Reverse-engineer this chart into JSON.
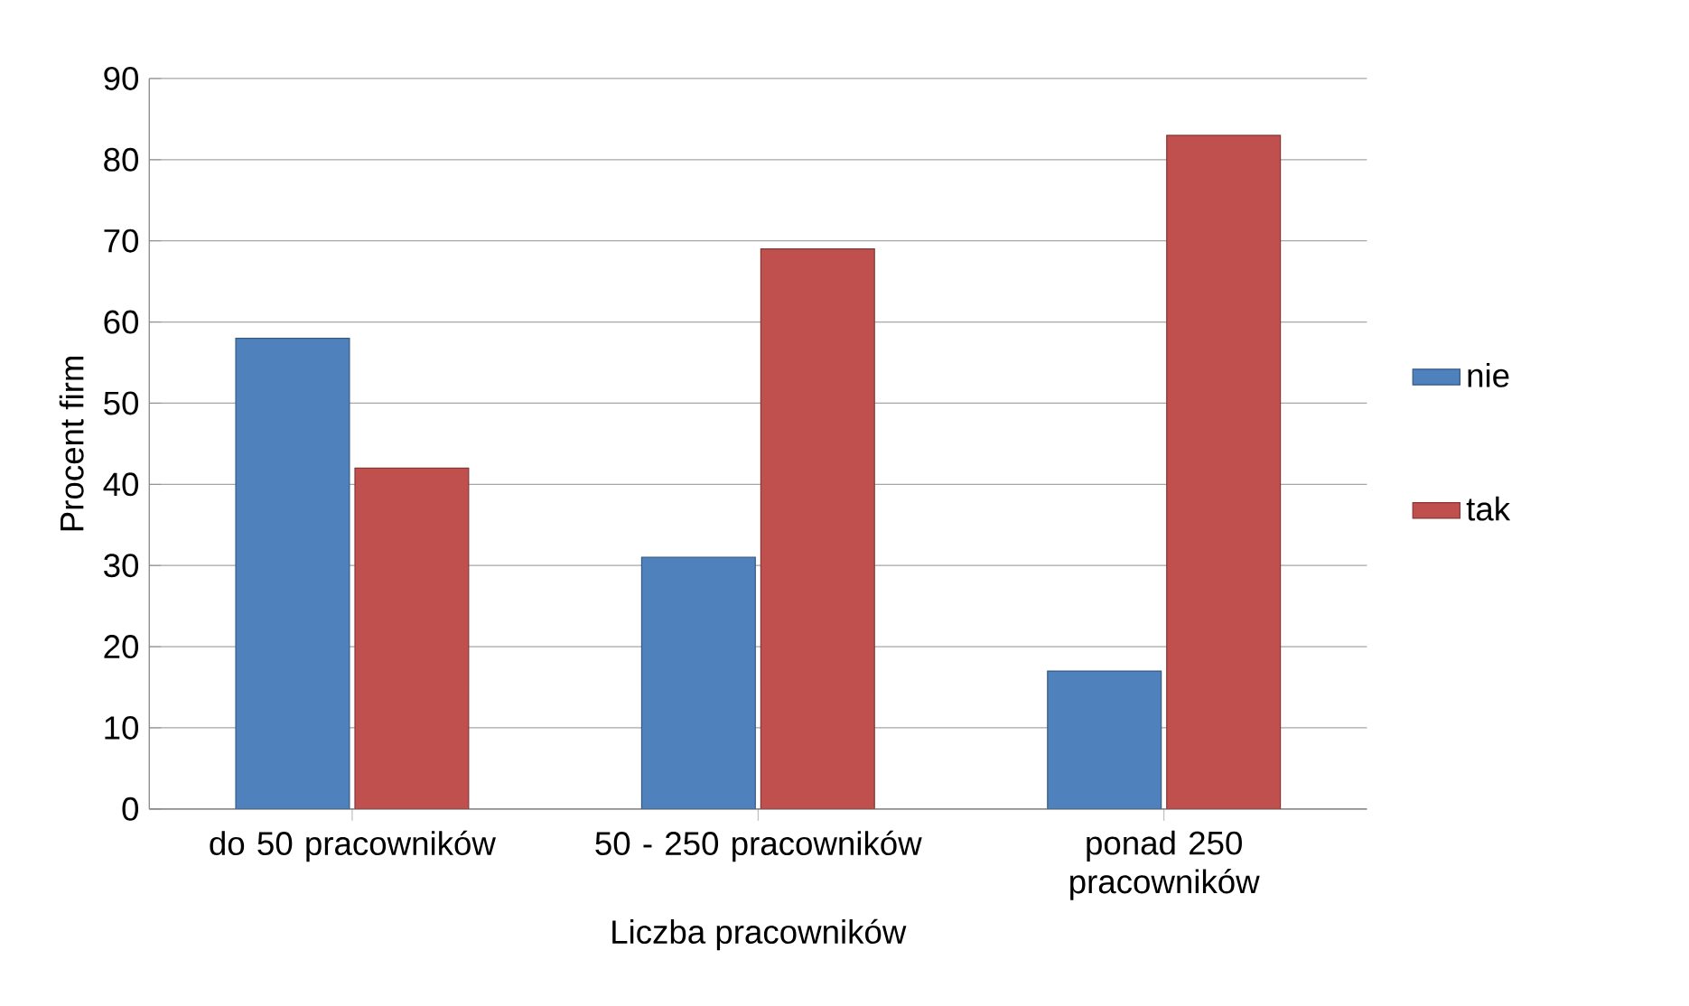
{
  "chart_data": {
    "type": "bar",
    "xlabel": "Liczba pracowników",
    "ylabel": "Procent firm",
    "categories": [
      "do 50 pracowników",
      "50 - 250 pracowników",
      "ponad 250 pracowników"
    ],
    "series": [
      {
        "name": "nie",
        "color": "#4f81bd",
        "values": [
          58,
          31,
          17
        ]
      },
      {
        "name": "tak",
        "color": "#c0504d",
        "values": [
          42,
          69,
          83
        ]
      }
    ],
    "ylim": [
      0,
      90
    ],
    "yticks": [
      0,
      10,
      20,
      30,
      40,
      50,
      60,
      70,
      80,
      90
    ],
    "grid": "y",
    "legend": "right"
  }
}
